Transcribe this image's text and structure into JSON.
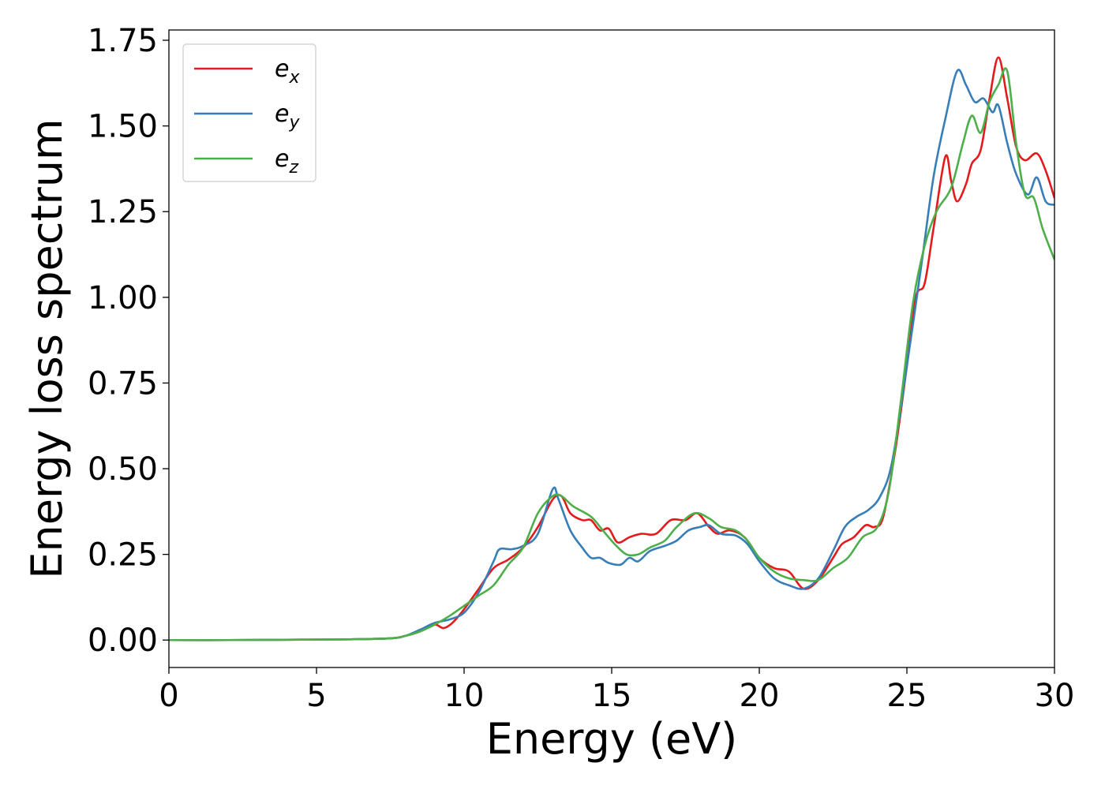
{
  "chart_data": {
    "type": "line",
    "title": "",
    "xlabel": "Energy (eV)",
    "ylabel": "Energy loss spectrum",
    "xlim": [
      0,
      30
    ],
    "ylim": [
      -0.08,
      1.78
    ],
    "x_ticks": [
      0,
      5,
      10,
      15,
      20,
      25,
      30
    ],
    "x_tick_labels": [
      "0",
      "5",
      "10",
      "15",
      "20",
      "25",
      "30"
    ],
    "y_ticks": [
      0.0,
      0.25,
      0.5,
      0.75,
      1.0,
      1.25,
      1.5,
      1.75
    ],
    "y_tick_labels": [
      "0.00",
      "0.25",
      "0.50",
      "0.75",
      "1.00",
      "1.25",
      "1.50",
      "1.75"
    ],
    "grid": false,
    "legend_position": "top-left",
    "series": [
      {
        "name": "e_x",
        "label_base": "e",
        "label_sub": "x",
        "color": "#e41a1c",
        "points": [
          [
            0,
            0.0
          ],
          [
            2,
            0.0
          ],
          [
            4,
            0.001
          ],
          [
            6,
            0.002
          ],
          [
            7.5,
            0.005
          ],
          [
            8.0,
            0.012
          ],
          [
            8.5,
            0.025
          ],
          [
            9.0,
            0.045
          ],
          [
            9.3,
            0.035
          ],
          [
            9.6,
            0.05
          ],
          [
            10.0,
            0.09
          ],
          [
            10.5,
            0.15
          ],
          [
            11.0,
            0.21
          ],
          [
            11.5,
            0.235
          ],
          [
            12.0,
            0.27
          ],
          [
            12.5,
            0.33
          ],
          [
            13.0,
            0.41
          ],
          [
            13.3,
            0.42
          ],
          [
            13.6,
            0.37
          ],
          [
            14.0,
            0.35
          ],
          [
            14.3,
            0.35
          ],
          [
            14.6,
            0.32
          ],
          [
            14.9,
            0.325
          ],
          [
            15.2,
            0.285
          ],
          [
            15.6,
            0.3
          ],
          [
            16.0,
            0.31
          ],
          [
            16.5,
            0.31
          ],
          [
            17.0,
            0.35
          ],
          [
            17.5,
            0.35
          ],
          [
            17.9,
            0.37
          ],
          [
            18.3,
            0.33
          ],
          [
            18.6,
            0.31
          ],
          [
            19.0,
            0.32
          ],
          [
            19.5,
            0.3
          ],
          [
            20.0,
            0.24
          ],
          [
            20.5,
            0.21
          ],
          [
            21.0,
            0.2
          ],
          [
            21.5,
            0.15
          ],
          [
            22.0,
            0.175
          ],
          [
            22.5,
            0.24
          ],
          [
            22.8,
            0.28
          ],
          [
            23.2,
            0.3
          ],
          [
            23.6,
            0.335
          ],
          [
            23.9,
            0.33
          ],
          [
            24.2,
            0.36
          ],
          [
            24.6,
            0.55
          ],
          [
            25.0,
            0.8
          ],
          [
            25.3,
            1.0
          ],
          [
            25.6,
            1.04
          ],
          [
            25.9,
            1.2
          ],
          [
            26.3,
            1.41
          ],
          [
            26.5,
            1.34
          ],
          [
            26.7,
            1.28
          ],
          [
            27.0,
            1.33
          ],
          [
            27.2,
            1.39
          ],
          [
            27.5,
            1.43
          ],
          [
            27.8,
            1.58
          ],
          [
            28.1,
            1.7
          ],
          [
            28.4,
            1.58
          ],
          [
            28.7,
            1.44
          ],
          [
            29.0,
            1.4
          ],
          [
            29.4,
            1.42
          ],
          [
            29.7,
            1.37
          ],
          [
            30.0,
            1.29
          ]
        ]
      },
      {
        "name": "e_y",
        "label_base": "e",
        "label_sub": "y",
        "color": "#377eb8",
        "points": [
          [
            0,
            0.0
          ],
          [
            2,
            0.0
          ],
          [
            4,
            0.001
          ],
          [
            6,
            0.002
          ],
          [
            7.5,
            0.005
          ],
          [
            8.0,
            0.012
          ],
          [
            8.5,
            0.03
          ],
          [
            9.0,
            0.05
          ],
          [
            9.5,
            0.06
          ],
          [
            10.0,
            0.08
          ],
          [
            10.5,
            0.14
          ],
          [
            11.0,
            0.23
          ],
          [
            11.2,
            0.265
          ],
          [
            11.6,
            0.265
          ],
          [
            12.0,
            0.275
          ],
          [
            12.5,
            0.31
          ],
          [
            13.0,
            0.44
          ],
          [
            13.2,
            0.41
          ],
          [
            13.6,
            0.32
          ],
          [
            14.0,
            0.27
          ],
          [
            14.3,
            0.24
          ],
          [
            14.6,
            0.24
          ],
          [
            14.9,
            0.225
          ],
          [
            15.3,
            0.22
          ],
          [
            15.6,
            0.24
          ],
          [
            15.9,
            0.23
          ],
          [
            16.3,
            0.26
          ],
          [
            16.8,
            0.275
          ],
          [
            17.2,
            0.29
          ],
          [
            17.6,
            0.32
          ],
          [
            18.0,
            0.33
          ],
          [
            18.3,
            0.335
          ],
          [
            18.7,
            0.31
          ],
          [
            19.2,
            0.305
          ],
          [
            19.6,
            0.28
          ],
          [
            20.0,
            0.23
          ],
          [
            20.5,
            0.18
          ],
          [
            21.0,
            0.16
          ],
          [
            21.5,
            0.15
          ],
          [
            22.0,
            0.18
          ],
          [
            22.5,
            0.26
          ],
          [
            22.9,
            0.33
          ],
          [
            23.3,
            0.36
          ],
          [
            23.7,
            0.38
          ],
          [
            24.1,
            0.42
          ],
          [
            24.5,
            0.52
          ],
          [
            25.0,
            0.8
          ],
          [
            25.5,
            1.1
          ],
          [
            25.9,
            1.35
          ],
          [
            26.3,
            1.52
          ],
          [
            26.7,
            1.66
          ],
          [
            27.0,
            1.62
          ],
          [
            27.3,
            1.57
          ],
          [
            27.6,
            1.58
          ],
          [
            27.9,
            1.54
          ],
          [
            28.1,
            1.56
          ],
          [
            28.4,
            1.45
          ],
          [
            28.7,
            1.36
          ],
          [
            29.1,
            1.3
          ],
          [
            29.4,
            1.35
          ],
          [
            29.7,
            1.28
          ],
          [
            30.0,
            1.27
          ]
        ]
      },
      {
        "name": "e_z",
        "label_base": "e",
        "label_sub": "z",
        "color": "#4daf4a",
        "points": [
          [
            0,
            0.0
          ],
          [
            2,
            0.0
          ],
          [
            4,
            0.001
          ],
          [
            6,
            0.002
          ],
          [
            7.5,
            0.005
          ],
          [
            8.0,
            0.012
          ],
          [
            8.5,
            0.025
          ],
          [
            9.0,
            0.045
          ],
          [
            9.5,
            0.07
          ],
          [
            10.0,
            0.1
          ],
          [
            10.5,
            0.13
          ],
          [
            11.0,
            0.16
          ],
          [
            11.5,
            0.22
          ],
          [
            12.0,
            0.27
          ],
          [
            12.5,
            0.37
          ],
          [
            13.0,
            0.42
          ],
          [
            13.3,
            0.42
          ],
          [
            13.7,
            0.39
          ],
          [
            14.3,
            0.36
          ],
          [
            14.7,
            0.32
          ],
          [
            15.1,
            0.28
          ],
          [
            15.5,
            0.25
          ],
          [
            15.9,
            0.25
          ],
          [
            16.3,
            0.27
          ],
          [
            16.8,
            0.29
          ],
          [
            17.2,
            0.33
          ],
          [
            17.8,
            0.37
          ],
          [
            18.3,
            0.355
          ],
          [
            18.7,
            0.33
          ],
          [
            19.2,
            0.32
          ],
          [
            19.6,
            0.29
          ],
          [
            20.0,
            0.24
          ],
          [
            20.5,
            0.2
          ],
          [
            21.0,
            0.18
          ],
          [
            21.5,
            0.175
          ],
          [
            22.0,
            0.175
          ],
          [
            22.5,
            0.21
          ],
          [
            23.0,
            0.24
          ],
          [
            23.5,
            0.3
          ],
          [
            24.0,
            0.33
          ],
          [
            24.4,
            0.44
          ],
          [
            24.8,
            0.7
          ],
          [
            25.2,
            0.98
          ],
          [
            25.6,
            1.15
          ],
          [
            26.0,
            1.25
          ],
          [
            26.5,
            1.32
          ],
          [
            26.9,
            1.45
          ],
          [
            27.2,
            1.53
          ],
          [
            27.5,
            1.48
          ],
          [
            27.8,
            1.57
          ],
          [
            28.1,
            1.62
          ],
          [
            28.4,
            1.66
          ],
          [
            28.7,
            1.45
          ],
          [
            29.0,
            1.3
          ],
          [
            29.3,
            1.29
          ],
          [
            29.6,
            1.2
          ],
          [
            30.0,
            1.11
          ]
        ]
      }
    ]
  }
}
